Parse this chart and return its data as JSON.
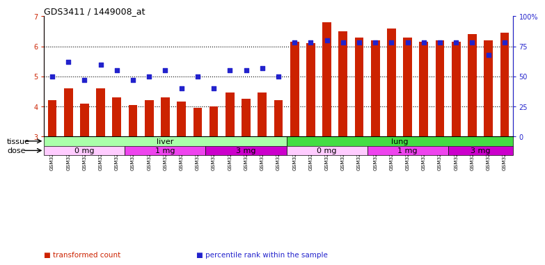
{
  "title": "GDS3411 / 1449008_at",
  "categories": [
    "GSM326974",
    "GSM326976",
    "GSM326978",
    "GSM326980",
    "GSM326982",
    "GSM326983",
    "GSM326985",
    "GSM326987",
    "GSM326989",
    "GSM326991",
    "GSM326993",
    "GSM326995",
    "GSM326997",
    "GSM326999",
    "GSM327001",
    "GSM326973",
    "GSM326975",
    "GSM326977",
    "GSM326979",
    "GSM326981",
    "GSM326984",
    "GSM326986",
    "GSM326988",
    "GSM326990",
    "GSM326992",
    "GSM326994",
    "GSM326996",
    "GSM326998",
    "GSM327000"
  ],
  "bar_values": [
    4.2,
    4.6,
    4.1,
    4.6,
    4.3,
    4.05,
    4.2,
    4.3,
    4.15,
    3.95,
    4.0,
    4.45,
    4.25,
    4.45,
    4.2,
    6.15,
    6.1,
    6.8,
    6.5,
    6.3,
    6.2,
    6.6,
    6.3,
    6.15,
    6.2,
    6.15,
    6.4,
    6.2,
    6.45
  ],
  "dot_percentiles": [
    50,
    62,
    47,
    60,
    55,
    47,
    50,
    55,
    40,
    50,
    40,
    55,
    55,
    57,
    50,
    78,
    78,
    80,
    78,
    78,
    78,
    78,
    78,
    78,
    78,
    78,
    78,
    68,
    78
  ],
  "bar_color": "#cc2200",
  "dot_color": "#2222cc",
  "ylim_left": [
    3,
    7
  ],
  "ylim_right": [
    0,
    100
  ],
  "yticks_left": [
    3,
    4,
    5,
    6,
    7
  ],
  "yticks_right": [
    0,
    25,
    50,
    75,
    100
  ],
  "ytick_labels_right": [
    "0",
    "25",
    "50",
    "75",
    "100%"
  ],
  "tissue_labels": [
    {
      "label": "liver",
      "start": 0,
      "end": 15,
      "color": "#aaffaa"
    },
    {
      "label": "lung",
      "start": 15,
      "end": 29,
      "color": "#44dd44"
    }
  ],
  "dose_labels": [
    {
      "label": "0 mg",
      "start": 0,
      "end": 5,
      "color": "#ffccff"
    },
    {
      "label": "1 mg",
      "start": 5,
      "end": 10,
      "color": "#ee44ee"
    },
    {
      "label": "3 mg",
      "start": 10,
      "end": 15,
      "color": "#cc00cc"
    },
    {
      "label": "0 mg",
      "start": 15,
      "end": 20,
      "color": "#ffccff"
    },
    {
      "label": "1 mg",
      "start": 20,
      "end": 25,
      "color": "#ee44ee"
    },
    {
      "label": "3 mg",
      "start": 25,
      "end": 29,
      "color": "#cc00cc"
    }
  ],
  "legend_items": [
    {
      "label": "transformed count",
      "color": "#cc2200"
    },
    {
      "label": "percentile rank within the sample",
      "color": "#2222cc"
    }
  ],
  "tissue_row_label": "tissue",
  "dose_row_label": "dose",
  "background_color": "#ffffff",
  "bar_width": 0.55
}
